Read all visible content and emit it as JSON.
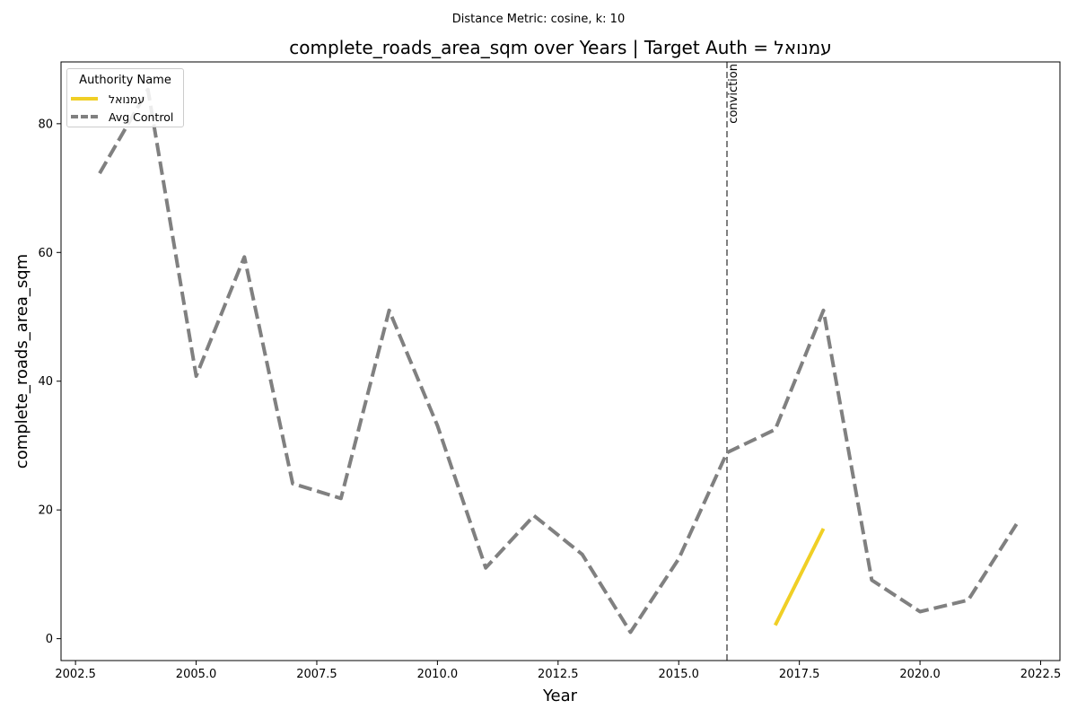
{
  "suptitle": "Distance Metric: cosine, k: 10",
  "chart_data": {
    "type": "line",
    "title": "complete_roads_area_sqm over Years | Target Auth = עמנואל",
    "xlabel": "Year",
    "ylabel": "complete_roads_area_sqm",
    "xlim": [
      2002.2,
      2022.9
    ],
    "ylim": [
      -3.4,
      89.6
    ],
    "xticks": [
      2002.5,
      2005.0,
      2007.5,
      2010.0,
      2012.5,
      2015.0,
      2017.5,
      2020.0,
      2022.5
    ],
    "xtick_labels": [
      "2002.5",
      "2005.0",
      "2007.5",
      "2010.0",
      "2012.5",
      "2015.0",
      "2017.5",
      "2020.0",
      "2022.5"
    ],
    "yticks": [
      0,
      20,
      40,
      60,
      80
    ],
    "ytick_labels": [
      "0",
      "20",
      "40",
      "60",
      "80"
    ],
    "grid": false,
    "legend": {
      "title": "Authority Name",
      "placement": "upper-left"
    },
    "series": [
      {
        "name": "עמנואל",
        "color": "#f0cf25",
        "style": "solid",
        "x": [
          2017,
          2018
        ],
        "y": [
          2.1,
          17.1
        ]
      },
      {
        "name": "Avg Control",
        "color": "#808080",
        "style": "dashed",
        "x": [
          2003,
          2004,
          2005,
          2006,
          2007,
          2008,
          2009,
          2010,
          2011,
          2012,
          2013,
          2014,
          2015,
          2016,
          2017,
          2018,
          2019,
          2020,
          2021,
          2022
        ],
        "y": [
          72.3,
          85.3,
          40.8,
          59.3,
          24.1,
          21.8,
          51.0,
          33.1,
          11.0,
          19.1,
          13.1,
          1.0,
          12.4,
          28.9,
          32.5,
          51.0,
          9.1,
          4.2,
          6.0,
          17.8
        ]
      }
    ],
    "annotations": [
      {
        "type": "vline",
        "x": 2016,
        "label": "conviction",
        "color": "#808080",
        "style": "dashed"
      }
    ]
  }
}
